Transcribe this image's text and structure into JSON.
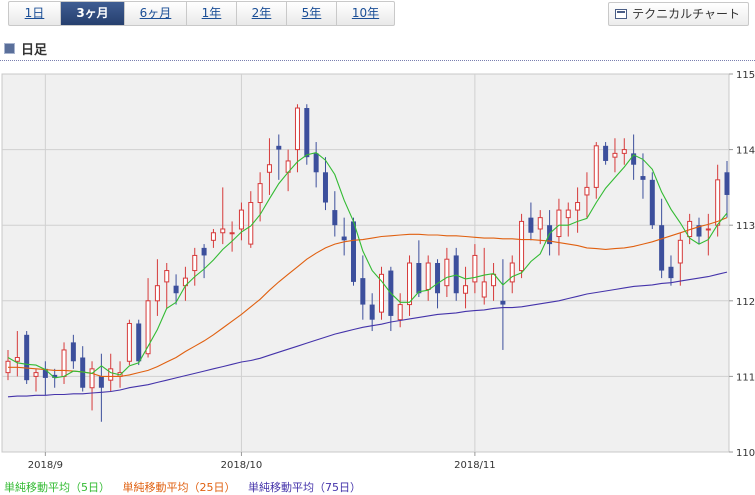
{
  "tabs": [
    {
      "label": "1日",
      "active": false
    },
    {
      "label": "3ヶ月",
      "active": true
    },
    {
      "label": "6ヶ月",
      "active": false
    },
    {
      "label": "1年",
      "active": false
    },
    {
      "label": "2年",
      "active": false
    },
    {
      "label": "5年",
      "active": false
    },
    {
      "label": "10年",
      "active": false
    }
  ],
  "technical_button": "テクニカルチャート",
  "section_title": "日足",
  "legend": [
    {
      "label": "単純移動平均（5日）",
      "color": "#33bb33"
    },
    {
      "label": "単純移動平均（25日）",
      "color": "#e06010"
    },
    {
      "label": "単純移動平均（75日）",
      "color": "#4433aa"
    }
  ],
  "colors": {
    "up": "#d63a3a",
    "down": "#3c4f9c",
    "plot_bg": "#f0f0f0",
    "grid": "#d0d0d0"
  },
  "chart_data": {
    "type": "candlestick",
    "ylim": [
      110,
      115
    ],
    "y_ticks": [
      110,
      111,
      112,
      113,
      114,
      115
    ],
    "x_ticks": [
      {
        "label": "2018/9",
        "index": 4
      },
      {
        "label": "2018/10",
        "index": 25
      },
      {
        "label": "2018/11",
        "index": 50
      }
    ],
    "candles": [
      [
        111.05,
        111.35,
        110.95,
        111.2
      ],
      [
        111.2,
        111.6,
        111.0,
        111.25
      ],
      [
        111.55,
        111.6,
        110.9,
        110.95
      ],
      [
        111.0,
        111.1,
        110.8,
        111.05
      ],
      [
        111.1,
        111.2,
        110.75,
        110.98
      ],
      [
        111.02,
        111.1,
        110.85,
        110.98
      ],
      [
        111.0,
        111.45,
        110.9,
        111.35
      ],
      [
        111.45,
        111.55,
        111.1,
        111.2
      ],
      [
        111.25,
        111.4,
        110.8,
        110.85
      ],
      [
        110.85,
        111.2,
        110.55,
        111.1
      ],
      [
        111.0,
        111.3,
        110.4,
        110.85
      ],
      [
        110.95,
        111.3,
        110.8,
        111.1
      ],
      [
        111.0,
        111.2,
        110.85,
        111.05
      ],
      [
        111.2,
        111.75,
        111.15,
        111.7
      ],
      [
        111.7,
        111.75,
        111.15,
        111.2
      ],
      [
        111.3,
        112.3,
        111.25,
        112.0
      ],
      [
        112.0,
        112.55,
        111.8,
        112.2
      ],
      [
        112.25,
        112.5,
        111.9,
        112.4
      ],
      [
        112.2,
        112.35,
        111.95,
        112.1
      ],
      [
        112.2,
        112.45,
        112.0,
        112.3
      ],
      [
        112.4,
        112.7,
        112.2,
        112.6
      ],
      [
        112.7,
        112.75,
        112.3,
        112.6
      ],
      [
        112.8,
        112.95,
        112.7,
        112.9
      ],
      [
        112.9,
        113.5,
        112.75,
        112.95
      ],
      [
        112.9,
        113.05,
        112.65,
        112.9
      ],
      [
        112.95,
        113.3,
        112.8,
        113.2
      ],
      [
        112.75,
        113.45,
        112.7,
        113.3
      ],
      [
        113.3,
        113.7,
        113.05,
        113.55
      ],
      [
        113.7,
        114.15,
        113.4,
        113.8
      ],
      [
        114.05,
        114.2,
        113.6,
        114.0
      ],
      [
        113.7,
        114.0,
        113.45,
        113.85
      ],
      [
        114.0,
        114.6,
        113.7,
        114.55
      ],
      [
        114.55,
        114.6,
        113.8,
        113.9
      ],
      [
        113.95,
        114.1,
        113.5,
        113.7
      ],
      [
        113.7,
        113.9,
        113.2,
        113.3
      ],
      [
        113.2,
        113.45,
        112.85,
        113.0
      ],
      [
        112.85,
        113.1,
        112.6,
        112.8
      ],
      [
        113.05,
        113.1,
        112.2,
        112.25
      ],
      [
        112.3,
        112.6,
        111.75,
        111.95
      ],
      [
        111.95,
        112.1,
        111.6,
        111.75
      ],
      [
        111.85,
        112.45,
        111.75,
        112.35
      ],
      [
        112.4,
        112.45,
        111.6,
        111.8
      ],
      [
        111.75,
        112.1,
        111.65,
        111.95
      ],
      [
        111.95,
        112.6,
        111.8,
        112.5
      ],
      [
        112.5,
        112.8,
        112.05,
        112.1
      ],
      [
        112.15,
        112.6,
        112.0,
        112.5
      ],
      [
        112.5,
        112.55,
        111.9,
        112.1
      ],
      [
        112.2,
        112.7,
        112.05,
        112.55
      ],
      [
        112.6,
        112.7,
        112.0,
        112.1
      ],
      [
        112.1,
        112.45,
        111.9,
        112.2
      ],
      [
        112.25,
        112.75,
        112.1,
        112.6
      ],
      [
        112.05,
        112.7,
        111.95,
        112.25
      ],
      [
        112.2,
        112.5,
        112.0,
        112.35
      ],
      [
        112.0,
        112.55,
        111.35,
        111.95
      ],
      [
        112.25,
        112.6,
        112.1,
        112.5
      ],
      [
        112.4,
        113.15,
        112.3,
        113.05
      ],
      [
        113.1,
        113.3,
        112.8,
        112.9
      ],
      [
        112.95,
        113.2,
        112.75,
        113.1
      ],
      [
        113.0,
        113.2,
        112.6,
        112.75
      ],
      [
        112.85,
        113.35,
        112.6,
        113.2
      ],
      [
        113.1,
        113.3,
        112.85,
        113.2
      ],
      [
        113.2,
        113.5,
        112.9,
        113.3
      ],
      [
        113.4,
        113.7,
        113.1,
        113.5
      ],
      [
        113.5,
        114.1,
        113.35,
        114.05
      ],
      [
        114.05,
        114.1,
        113.8,
        113.85
      ],
      [
        113.9,
        114.15,
        113.7,
        113.95
      ],
      [
        113.95,
        114.15,
        113.8,
        114.0
      ],
      [
        113.95,
        114.2,
        113.6,
        113.8
      ],
      [
        113.65,
        113.95,
        113.35,
        113.6
      ],
      [
        113.6,
        113.7,
        112.95,
        113.0
      ],
      [
        113.0,
        113.35,
        112.3,
        112.4
      ],
      [
        112.45,
        112.6,
        112.2,
        112.3
      ],
      [
        112.5,
        112.9,
        112.2,
        112.8
      ],
      [
        112.85,
        113.15,
        112.75,
        113.05
      ],
      [
        113.0,
        113.1,
        112.75,
        112.85
      ],
      [
        112.95,
        113.15,
        112.6,
        112.95
      ],
      [
        113.0,
        113.8,
        112.85,
        113.6
      ],
      [
        113.7,
        113.85,
        113.1,
        113.4
      ]
    ],
    "ma5": [
      111.25,
      111.18,
      111.16,
      111.15,
      111.09,
      110.98,
      111.0,
      111.07,
      111.06,
      111.04,
      111.14,
      111.05,
      111.02,
      111.14,
      111.18,
      111.4,
      111.62,
      111.9,
      111.98,
      112.2,
      112.32,
      112.42,
      112.54,
      112.68,
      112.79,
      112.91,
      112.99,
      113.14,
      113.35,
      113.55,
      113.7,
      113.84,
      113.93,
      113.96,
      113.86,
      113.67,
      113.33,
      113.05,
      112.66,
      112.4,
      112.26,
      112.1,
      111.98,
      111.98,
      112.12,
      112.14,
      112.23,
      112.31,
      112.34,
      112.29,
      112.31,
      112.34,
      112.36,
      112.21,
      112.32,
      112.37,
      112.52,
      112.62,
      112.89,
      113.0,
      113.0,
      113.05,
      113.09,
      113.3,
      113.49,
      113.63,
      113.77,
      113.93,
      113.87,
      113.74,
      113.44,
      113.21,
      113.03,
      112.83,
      112.75,
      112.81,
      113.01,
      113.16
    ],
    "ma25": [
      111.12,
      111.12,
      111.11,
      111.1,
      111.09,
      111.08,
      111.08,
      111.07,
      111.06,
      111.04,
      111.0,
      111.0,
      111.0,
      111.02,
      111.05,
      111.08,
      111.13,
      111.19,
      111.25,
      111.33,
      111.4,
      111.47,
      111.55,
      111.64,
      111.73,
      111.82,
      111.92,
      112.02,
      112.14,
      112.25,
      112.35,
      112.45,
      112.55,
      112.63,
      112.7,
      112.75,
      112.78,
      112.8,
      112.81,
      112.83,
      112.85,
      112.86,
      112.87,
      112.88,
      112.88,
      112.87,
      112.87,
      112.86,
      112.86,
      112.85,
      112.84,
      112.83,
      112.83,
      112.82,
      112.82,
      112.81,
      112.81,
      112.8,
      112.79,
      112.77,
      112.75,
      112.73,
      112.7,
      112.69,
      112.68,
      112.69,
      112.7,
      112.72,
      112.75,
      112.78,
      112.82,
      112.86,
      112.9,
      112.94,
      112.98,
      113.01,
      113.05,
      113.1
    ],
    "ma75": [
      110.73,
      110.74,
      110.74,
      110.75,
      110.75,
      110.76,
      110.76,
      110.77,
      110.77,
      110.78,
      110.79,
      110.8,
      110.82,
      110.85,
      110.87,
      110.89,
      110.92,
      110.95,
      110.98,
      111.01,
      111.04,
      111.07,
      111.1,
      111.13,
      111.16,
      111.19,
      111.21,
      111.24,
      111.28,
      111.32,
      111.36,
      111.4,
      111.44,
      111.48,
      111.52,
      111.56,
      111.59,
      111.62,
      111.65,
      111.67,
      111.69,
      111.72,
      111.74,
      111.76,
      111.78,
      111.8,
      111.82,
      111.83,
      111.84,
      111.86,
      111.87,
      111.88,
      111.9,
      111.91,
      111.91,
      111.92,
      111.94,
      111.96,
      111.98,
      112.0,
      112.03,
      112.06,
      112.09,
      112.11,
      112.13,
      112.15,
      112.17,
      112.19,
      112.2,
      112.21,
      112.23,
      112.24,
      112.26,
      112.28,
      112.3,
      112.32,
      112.35,
      112.38
    ]
  }
}
